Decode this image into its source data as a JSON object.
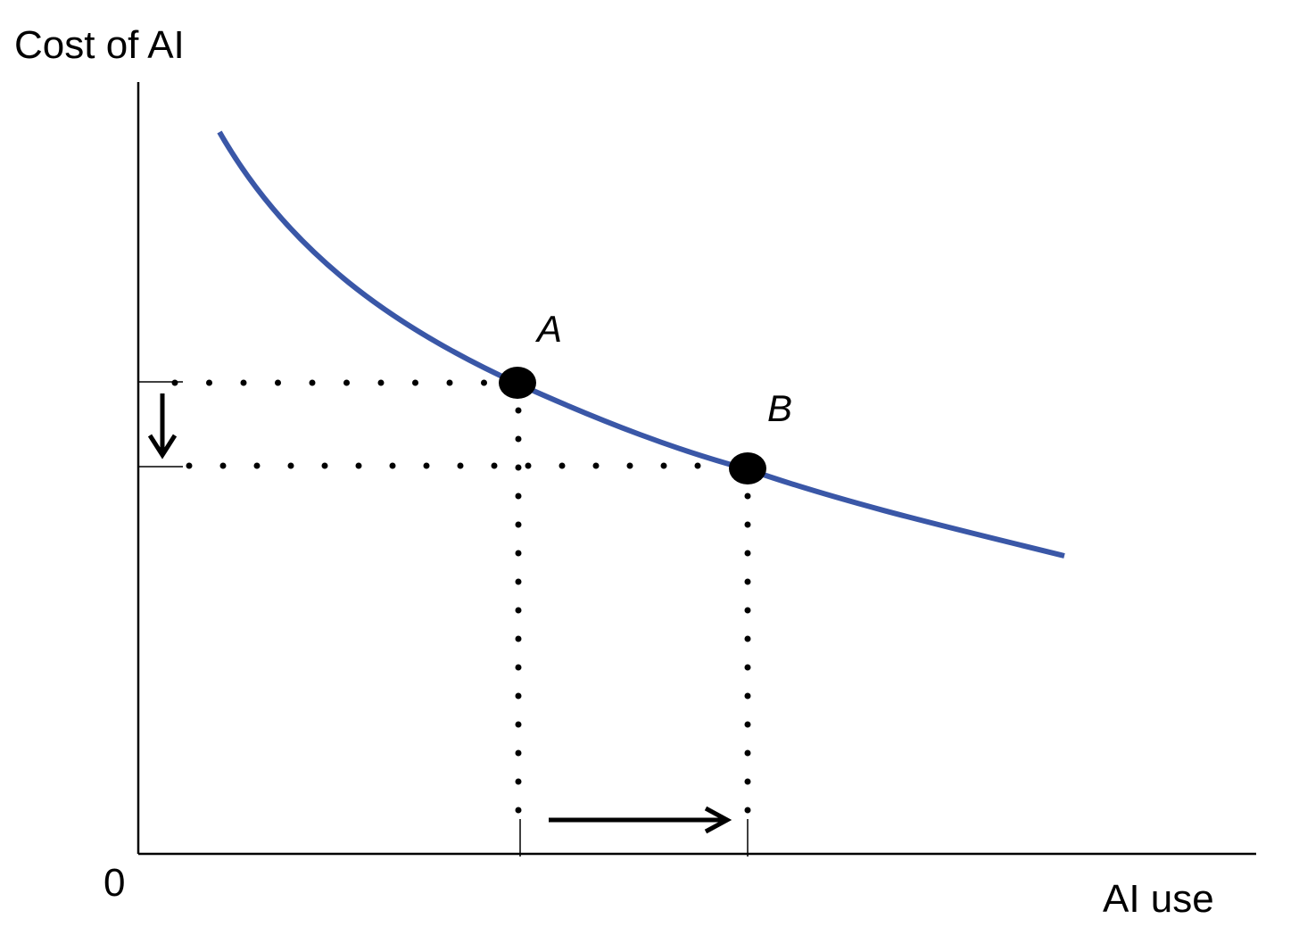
{
  "diagram": {
    "y_axis_label": "Cost of AI",
    "x_axis_label": "AI use",
    "origin_label": "0",
    "curve_color": "#3a57a7",
    "guide_color": "#000000",
    "points": [
      {
        "id": "A",
        "label": "A"
      },
      {
        "id": "B",
        "label": "B"
      }
    ],
    "arrows": [
      {
        "id": "cost-decrease",
        "direction": "down"
      },
      {
        "id": "use-increase",
        "direction": "right"
      }
    ]
  }
}
